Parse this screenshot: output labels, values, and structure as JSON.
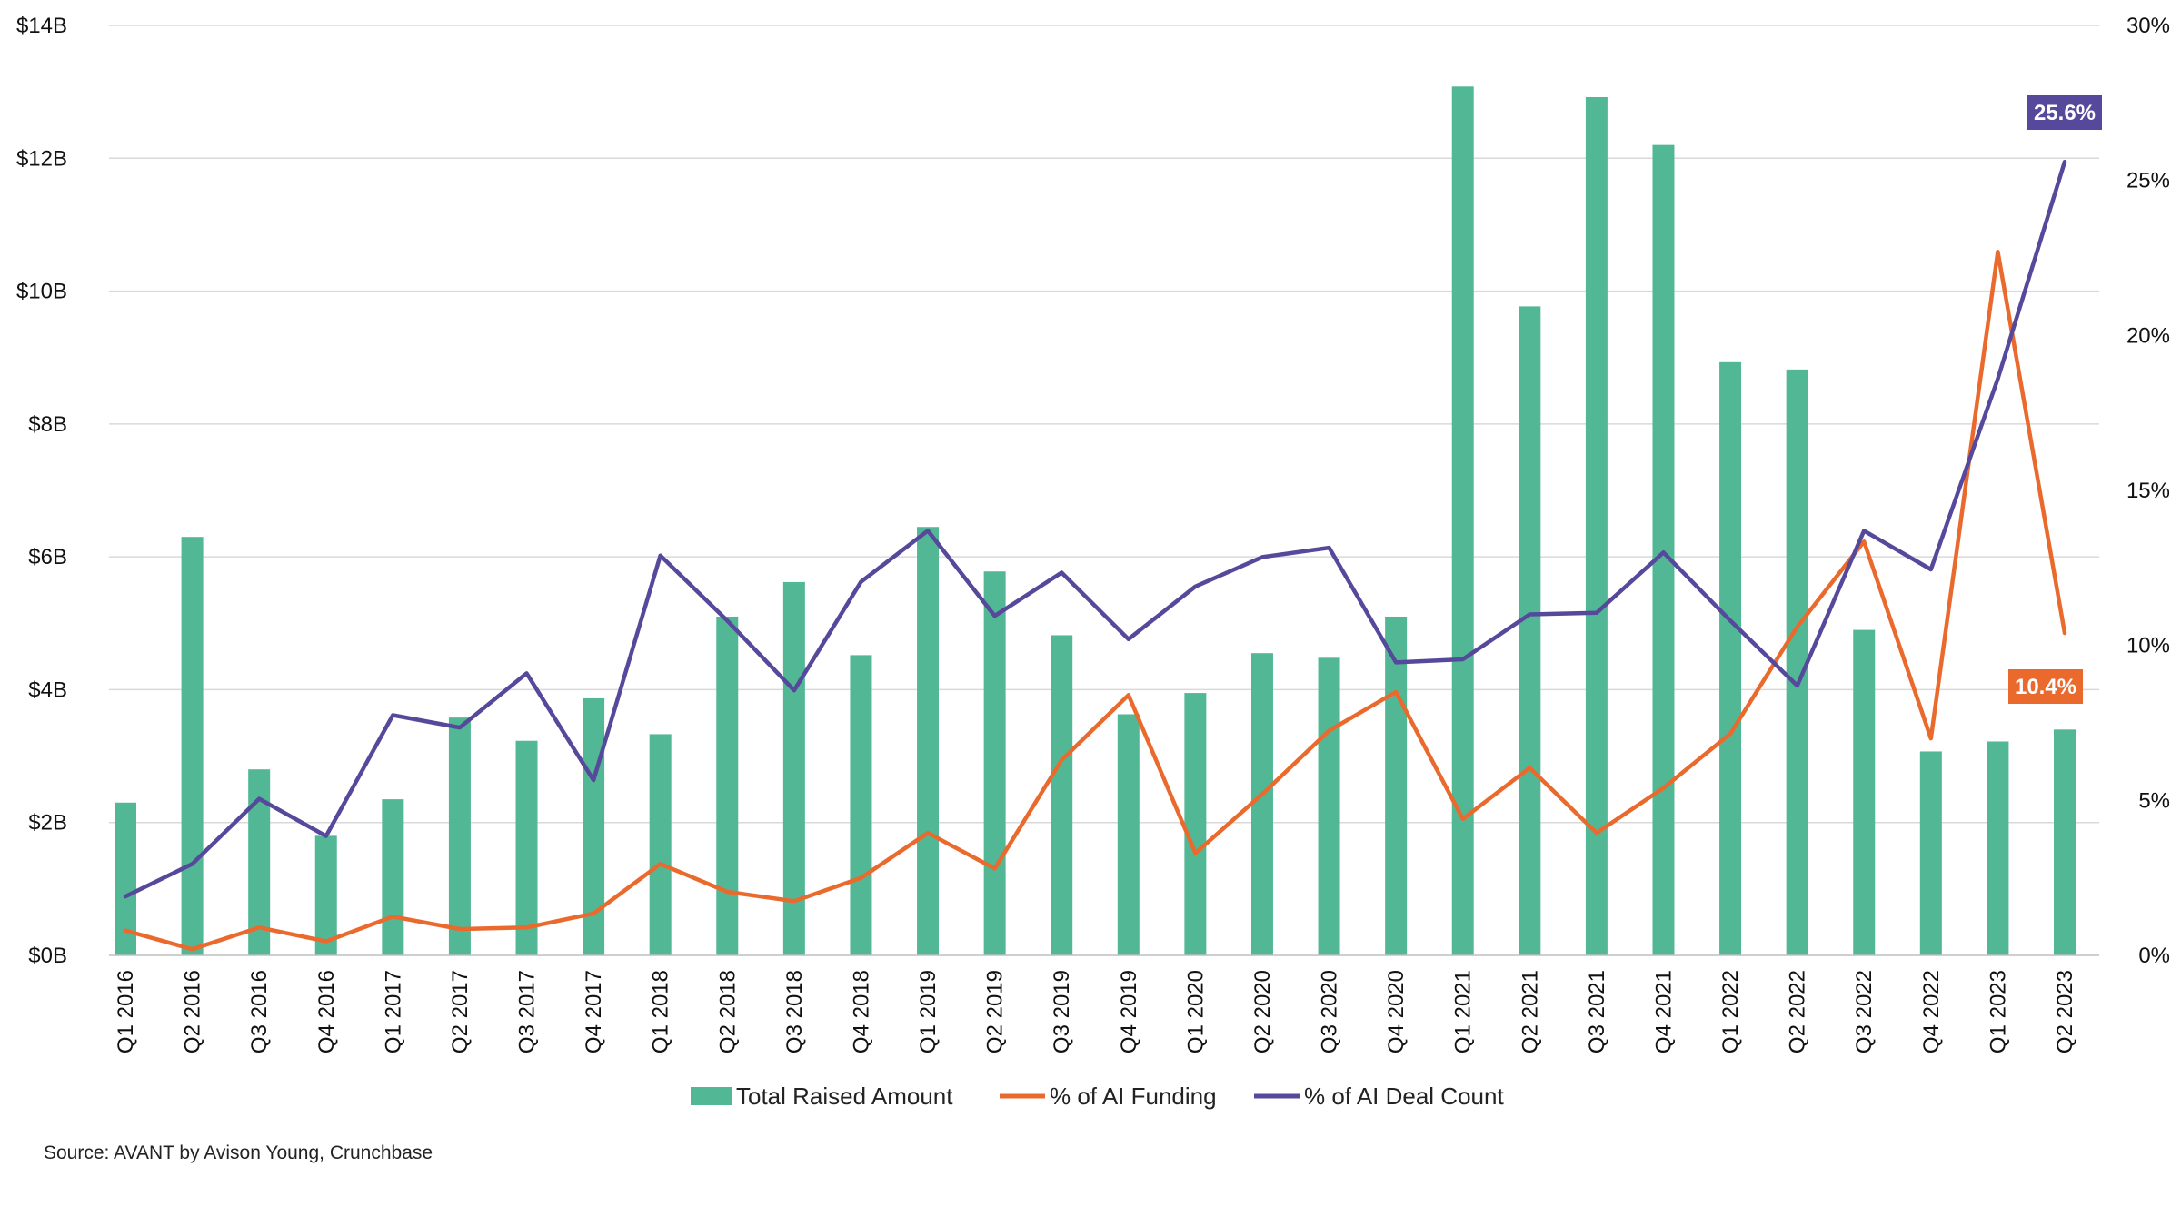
{
  "chart_data": {
    "type": "bar",
    "categories": [
      "Q1 2016",
      "Q2 2016",
      "Q3 2016",
      "Q4 2016",
      "Q1 2017",
      "Q2 2017",
      "Q3 2017",
      "Q4 2017",
      "Q1 2018",
      "Q2 2018",
      "Q3 2018",
      "Q4 2018",
      "Q1 2019",
      "Q2 2019",
      "Q3 2019",
      "Q4 2019",
      "Q1 2020",
      "Q2 2020",
      "Q3 2020",
      "Q4 2020",
      "Q1 2021",
      "Q2 2021",
      "Q3 2021",
      "Q4 2021",
      "Q1 2022",
      "Q2 2022",
      "Q3 2022",
      "Q4 2022",
      "Q1 2023",
      "Q2 2023"
    ],
    "series": [
      {
        "name": "Total Raised Amount",
        "type": "bar",
        "axis": "left",
        "color": "#52b795",
        "values": [
          2.3,
          6.3,
          2.8,
          1.8,
          2.35,
          3.58,
          3.23,
          3.87,
          3.33,
          5.1,
          5.62,
          4.52,
          6.45,
          5.78,
          4.82,
          3.63,
          3.95,
          4.55,
          4.48,
          5.1,
          13.08,
          9.77,
          12.92,
          12.2,
          8.93,
          8.82,
          4.9,
          3.07,
          3.22,
          3.4
        ]
      },
      {
        "name": "% of AI Funding",
        "type": "line",
        "axis": "right",
        "color": "#ea6a2e",
        "values": [
          0.8,
          0.2,
          0.9,
          0.45,
          1.25,
          0.85,
          0.9,
          1.35,
          2.95,
          2.05,
          1.75,
          2.5,
          3.95,
          2.8,
          6.3,
          8.4,
          3.3,
          5.2,
          7.25,
          8.5,
          4.4,
          6.05,
          3.95,
          5.4,
          7.15,
          10.6,
          13.35,
          7.0,
          22.7,
          10.4
        ]
      },
      {
        "name": "% of AI Deal Count",
        "type": "line",
        "axis": "right",
        "color": "#56489b",
        "values": [
          1.9,
          2.95,
          5.05,
          3.85,
          7.75,
          7.35,
          9.1,
          5.65,
          12.9,
          10.8,
          8.55,
          12.05,
          13.7,
          10.95,
          12.35,
          10.2,
          11.9,
          12.85,
          13.15,
          9.45,
          9.55,
          11.0,
          11.05,
          13.0,
          10.8,
          8.7,
          13.7,
          12.45,
          18.6,
          25.6
        ]
      }
    ],
    "y_left": {
      "ylim": [
        0,
        14
      ],
      "ticks": [
        "$0B",
        "$2B",
        "$4B",
        "$6B",
        "$8B",
        "$10B",
        "$12B",
        "$14B"
      ]
    },
    "y_right": {
      "ylim": [
        0,
        30
      ],
      "ticks": [
        "0%",
        "5%",
        "10%",
        "15%",
        "20%",
        "25%",
        "30%"
      ]
    },
    "grid": true,
    "legend": "bottom",
    "annotations": [
      {
        "series": "% of AI Deal Count",
        "category": "Q2 2023",
        "text": "25.6%"
      },
      {
        "series": "% of AI Funding",
        "category": "Q2 2023",
        "text": "10.4%"
      }
    ]
  },
  "source": "Source: AVANT by Avison Young, Crunchbase"
}
